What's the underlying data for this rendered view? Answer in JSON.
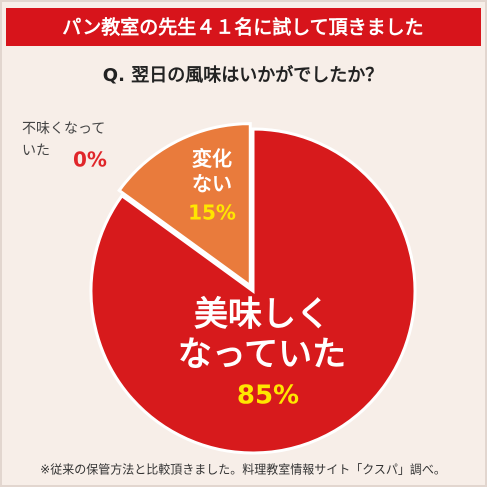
{
  "chart_data": {
    "type": "pie",
    "title": "パン教室の先生４１名に試して頂きました",
    "subtitle": "Q. 翌日の風味はいかがでしたか？",
    "categories": [
      [
        "美味しく",
        "なっていた"
      ],
      [
        "変化",
        "ない"
      ],
      [
        "不味くなって",
        "いた"
      ]
    ],
    "values": [
      85,
      15,
      0
    ],
    "value_labels": [
      "85%",
      "15%",
      "0%"
    ],
    "colors": [
      "#d71a1c",
      "#e97b3c",
      "#999999"
    ],
    "footnote": "※従来の保管方法と比較頂きました。料理教室情報サイト「クスパ」調べ。"
  }
}
